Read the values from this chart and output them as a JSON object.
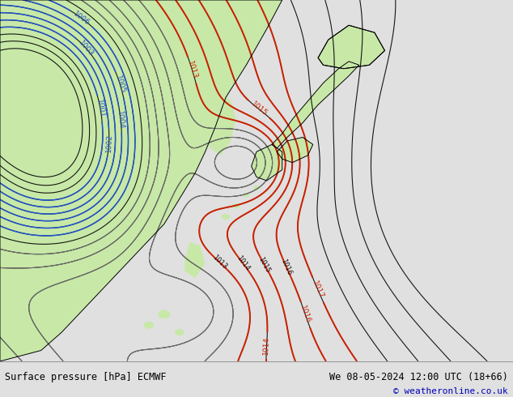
{
  "title_left": "Surface pressure [hPa] ECMWF",
  "title_right": "We 08-05-2024 12:00 UTC (18+66)",
  "copyright": "© weatheronline.co.uk",
  "bg_color": "#cddce8",
  "land_color": "#c8e8a8",
  "text_color_black": "#000000",
  "text_color_blue": "#0000bb",
  "contour_color_black": "#000000",
  "contour_color_blue": "#2255cc",
  "contour_color_red": "#cc2200",
  "contour_color_gray": "#777777",
  "footer_bg": "#e0e0e0",
  "figsize": [
    6.34,
    4.9
  ],
  "dpi": 100
}
